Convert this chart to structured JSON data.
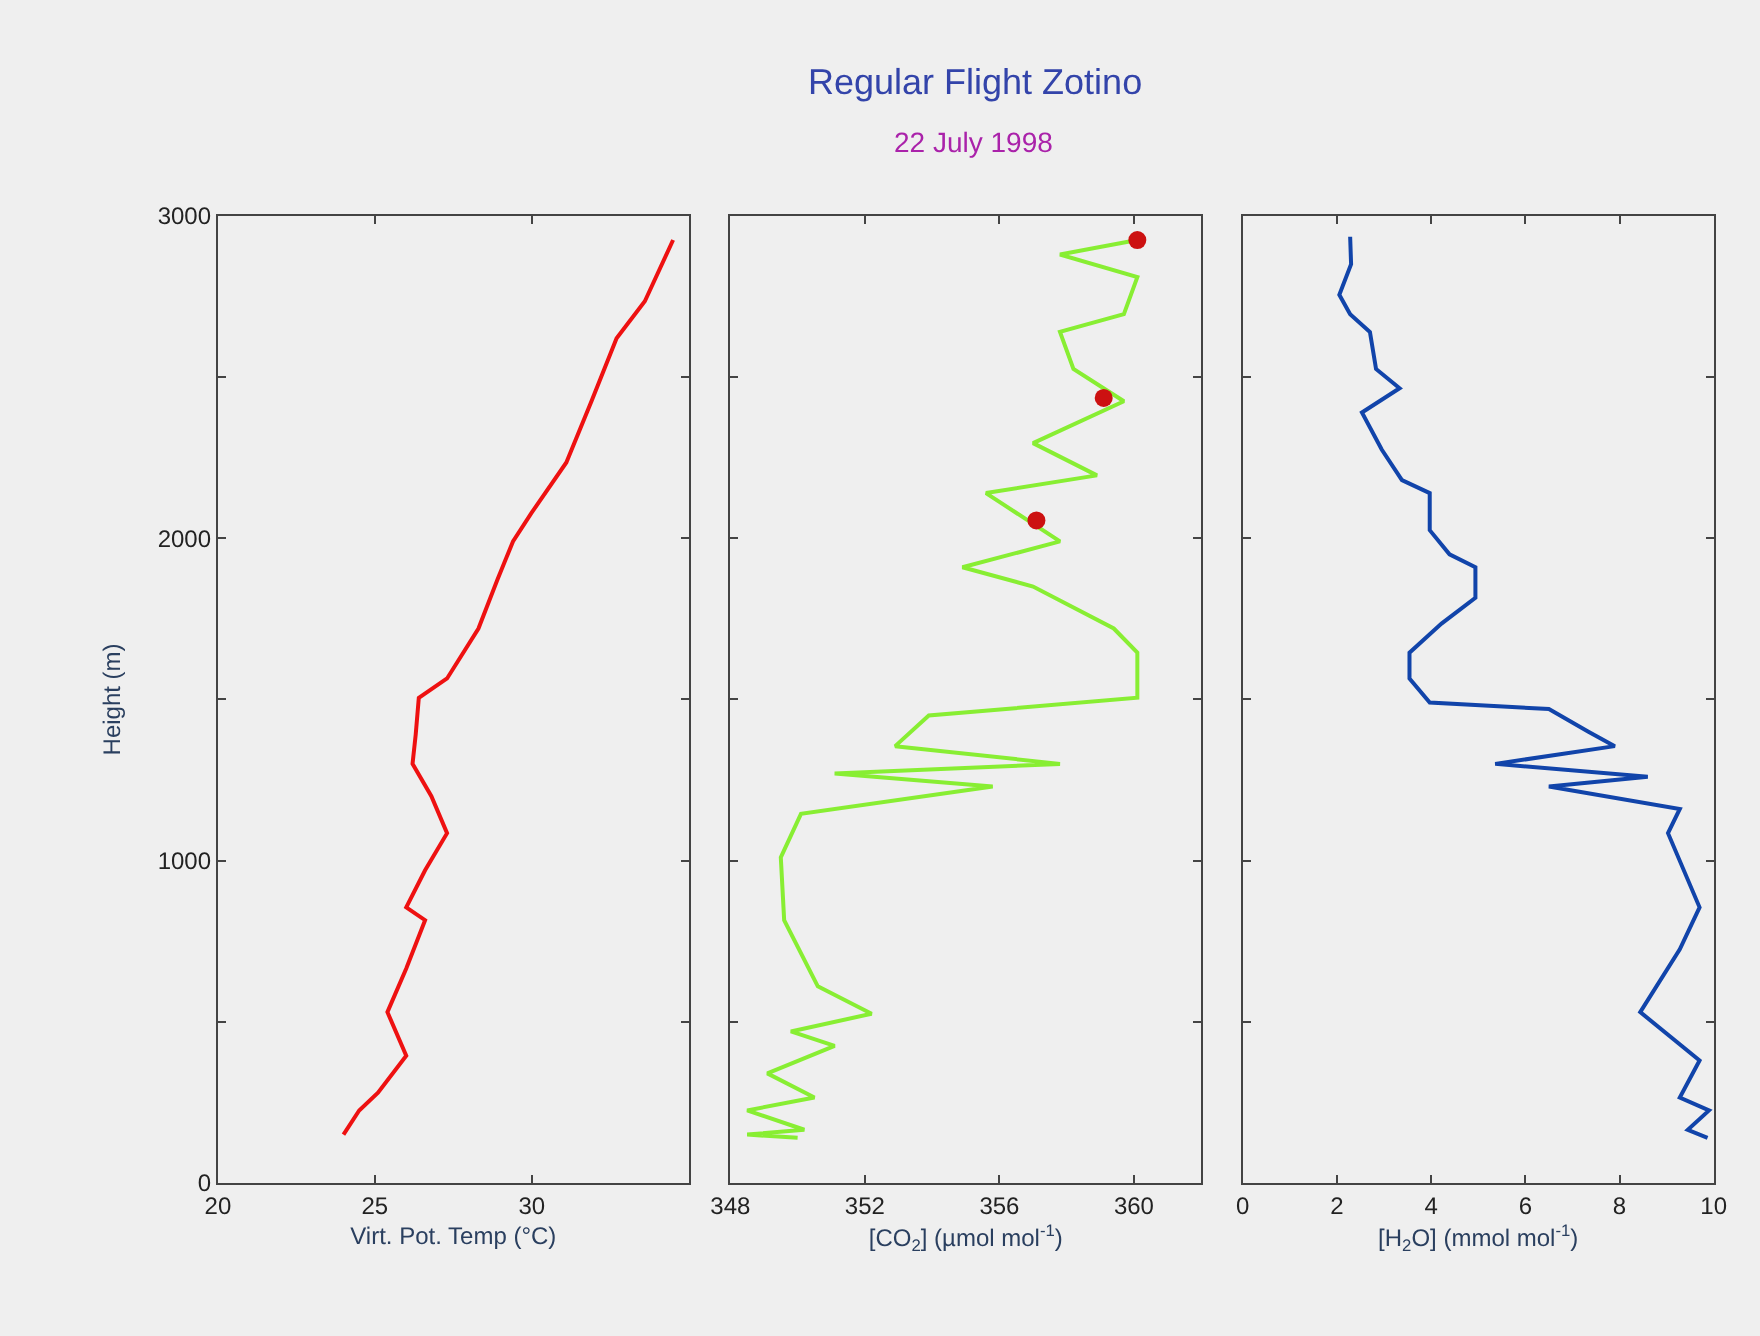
{
  "chart_data": [
    {
      "type": "line",
      "xlabel": "Virt. Pot. Temp (°C)",
      "ylabel": "Height (m)",
      "xlim": [
        20,
        35
      ],
      "xticks": [
        20,
        25,
        30
      ],
      "ylim": [
        0,
        3000
      ],
      "yticks": [
        0,
        {
          "value": 500,
          "label": null
        },
        1000,
        {
          "value": 1500,
          "label": null
        },
        2000,
        {
          "value": 2500,
          "label": null
        },
        3000
      ],
      "grid": false,
      "series": [
        {
          "color": "#ee1111",
          "x": [
            34.5,
            33.6,
            32.7,
            31.9,
            31.1,
            30.0,
            29.4,
            28.9,
            28.3,
            27.3,
            26.4,
            26.3,
            26.2,
            26.8,
            27.3,
            26.6,
            26.0,
            26.6,
            26.0,
            25.4,
            26.0,
            25.1,
            24.5,
            24.0
          ],
          "values": [
            2925,
            2735,
            2620,
            2425,
            2235,
            2080,
            1990,
            1870,
            1720,
            1565,
            1505,
            1390,
            1300,
            1200,
            1085,
            970,
            855,
            815,
            665,
            530,
            395,
            280,
            225,
            150
          ]
        }
      ]
    },
    {
      "type": "line",
      "title": "Regular Flight Zotino",
      "subtitle": "22 July 1998",
      "xlabel": "[CO$_{2}$] (µmol mol$^{-1}$)",
      "xlim": [
        348,
        362
      ],
      "xticks": [
        348,
        352,
        356,
        360
      ],
      "ylim": [
        0,
        3000
      ],
      "yticks": [
        0,
        {
          "value": 500,
          "label": null
        },
        1000,
        {
          "value": 1500,
          "label": null
        },
        2000,
        {
          "value": 2500,
          "label": null
        },
        3000
      ],
      "tick_labels": "x",
      "grid": false,
      "series": [
        {
          "color": "#88ee33",
          "x": [
            360.1,
            357.8,
            360.1,
            359.7,
            357.8,
            358.2,
            359.7,
            357.0,
            358.9,
            355.6,
            357.8,
            354.9,
            357.0,
            359.4,
            360.1,
            360.1,
            353.9,
            352.9,
            357.8,
            351.1,
            355.8,
            350.1,
            349.5,
            349.6,
            350.6,
            352.2,
            349.8,
            351.1,
            349.1,
            350.5,
            348.5,
            350.2,
            348.5,
            350.0
          ],
          "values": [
            2925,
            2880,
            2810,
            2695,
            2640,
            2525,
            2425,
            2295,
            2195,
            2140,
            1990,
            1910,
            1850,
            1720,
            1645,
            1505,
            1450,
            1355,
            1300,
            1270,
            1230,
            1145,
            1010,
            815,
            610,
            525,
            470,
            425,
            340,
            265,
            225,
            165,
            150,
            140
          ]
        },
        {
          "type": "scatter",
          "marker": "circle",
          "color": "#cc1111",
          "x": [
            360.1,
            359.1,
            357.1
          ],
          "values": [
            2925,
            2435,
            2055
          ]
        }
      ]
    },
    {
      "type": "line",
      "xlabel": "[H$_{2}$O] (mmol mol$^{-1}$)",
      "xlim": [
        0,
        10
      ],
      "xticks": [
        0,
        2,
        4,
        6,
        8,
        10
      ],
      "ylim": [
        0,
        3000
      ],
      "yticks": [
        0,
        {
          "value": 500,
          "label": null
        },
        1000,
        {
          "value": 1500,
          "label": null
        },
        2000,
        {
          "value": 2500,
          "label": null
        },
        3000
      ],
      "tick_labels": "x",
      "grid": false,
      "series": [
        {
          "color": "#1144aa",
          "x": [
            2.28,
            2.3,
            2.05,
            2.28,
            2.7,
            2.83,
            3.33,
            2.53,
            2.95,
            3.38,
            3.97,
            3.97,
            4.39,
            4.94,
            4.94,
            4.22,
            3.54,
            3.54,
            3.97,
            6.5,
            7.34,
            7.9,
            5.36,
            8.6,
            6.5,
            9.28,
            9.03,
            9.7,
            9.28,
            8.44,
            9.7,
            9.28,
            9.9,
            9.45,
            9.87
          ],
          "values": [
            2935,
            2850,
            2755,
            2695,
            2640,
            2525,
            2465,
            2390,
            2275,
            2180,
            2140,
            2025,
            1950,
            1910,
            1815,
            1735,
            1645,
            1565,
            1490,
            1470,
            1400,
            1355,
            1300,
            1260,
            1230,
            1160,
            1085,
            855,
            725,
            530,
            380,
            265,
            225,
            165,
            140
          ]
        }
      ]
    }
  ]
}
